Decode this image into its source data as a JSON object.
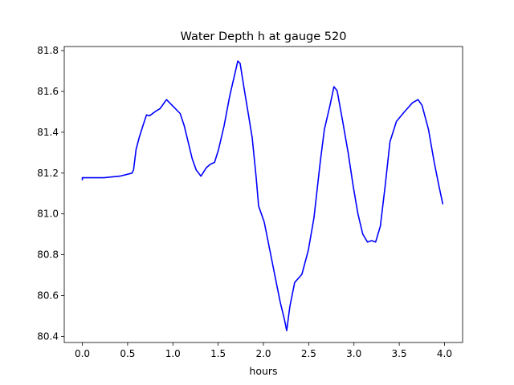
{
  "chart_data": {
    "type": "line",
    "title": "Water Depth h at gauge 520",
    "xlabel": "hours",
    "ylabel": "",
    "xlim": [
      -0.2,
      4.2
    ],
    "ylim": [
      80.37,
      81.82
    ],
    "xticks": [
      0.0,
      0.5,
      1.0,
      1.5,
      2.0,
      2.5,
      3.0,
      3.5,
      4.0
    ],
    "xtick_labels": [
      "0.0",
      "0.5",
      "1.0",
      "1.5",
      "2.0",
      "2.5",
      "3.0",
      "3.5",
      "4.0"
    ],
    "yticks": [
      80.4,
      80.6,
      80.8,
      81.0,
      81.2,
      81.4,
      81.6,
      81.8
    ],
    "ytick_labels": [
      "80.4",
      "80.6",
      "80.8",
      "81.0",
      "81.2",
      "81.4",
      "81.6",
      "81.8"
    ],
    "grid": false,
    "series": [
      {
        "name": "h",
        "color": "#0000ff",
        "x": [
          0.0,
          0.0,
          0.239,
          0.416,
          0.549,
          0.566,
          0.593,
          0.628,
          0.664,
          0.708,
          0.743,
          0.814,
          0.858,
          0.929,
          0.991,
          1.08,
          1.124,
          1.168,
          1.212,
          1.257,
          1.31,
          1.372,
          1.416,
          1.46,
          1.504,
          1.566,
          1.628,
          1.717,
          1.743,
          1.788,
          1.832,
          1.876,
          1.92,
          1.947,
          2.009,
          2.071,
          2.142,
          2.186,
          2.23,
          2.257,
          2.292,
          2.345,
          2.425,
          2.496,
          2.558,
          2.628,
          2.673,
          2.735,
          2.779,
          2.814,
          2.876,
          2.938,
          2.991,
          3.044,
          3.097,
          3.15,
          3.195,
          3.239,
          3.292,
          3.345,
          3.398,
          3.469,
          3.558,
          3.646,
          3.708,
          3.752,
          3.823,
          3.885,
          3.938,
          3.982
        ],
        "y": [
          81.165,
          81.177,
          81.177,
          81.185,
          81.2,
          81.216,
          81.315,
          81.374,
          81.425,
          81.485,
          81.481,
          81.504,
          81.516,
          81.56,
          81.532,
          81.492,
          81.433,
          81.354,
          81.272,
          81.216,
          81.185,
          81.228,
          81.244,
          81.252,
          81.315,
          81.433,
          81.579,
          81.749,
          81.737,
          81.611,
          81.492,
          81.374,
          81.177,
          81.039,
          80.96,
          80.822,
          80.664,
          80.566,
          80.487,
          80.428,
          80.546,
          80.664,
          80.704,
          80.822,
          80.98,
          81.256,
          81.414,
          81.532,
          81.623,
          81.603,
          81.453,
          81.295,
          81.138,
          81.0,
          80.901,
          80.862,
          80.869,
          80.862,
          80.94,
          81.138,
          81.354,
          81.453,
          81.5,
          81.544,
          81.56,
          81.532,
          81.414,
          81.256,
          81.138,
          81.047
        ]
      }
    ]
  }
}
